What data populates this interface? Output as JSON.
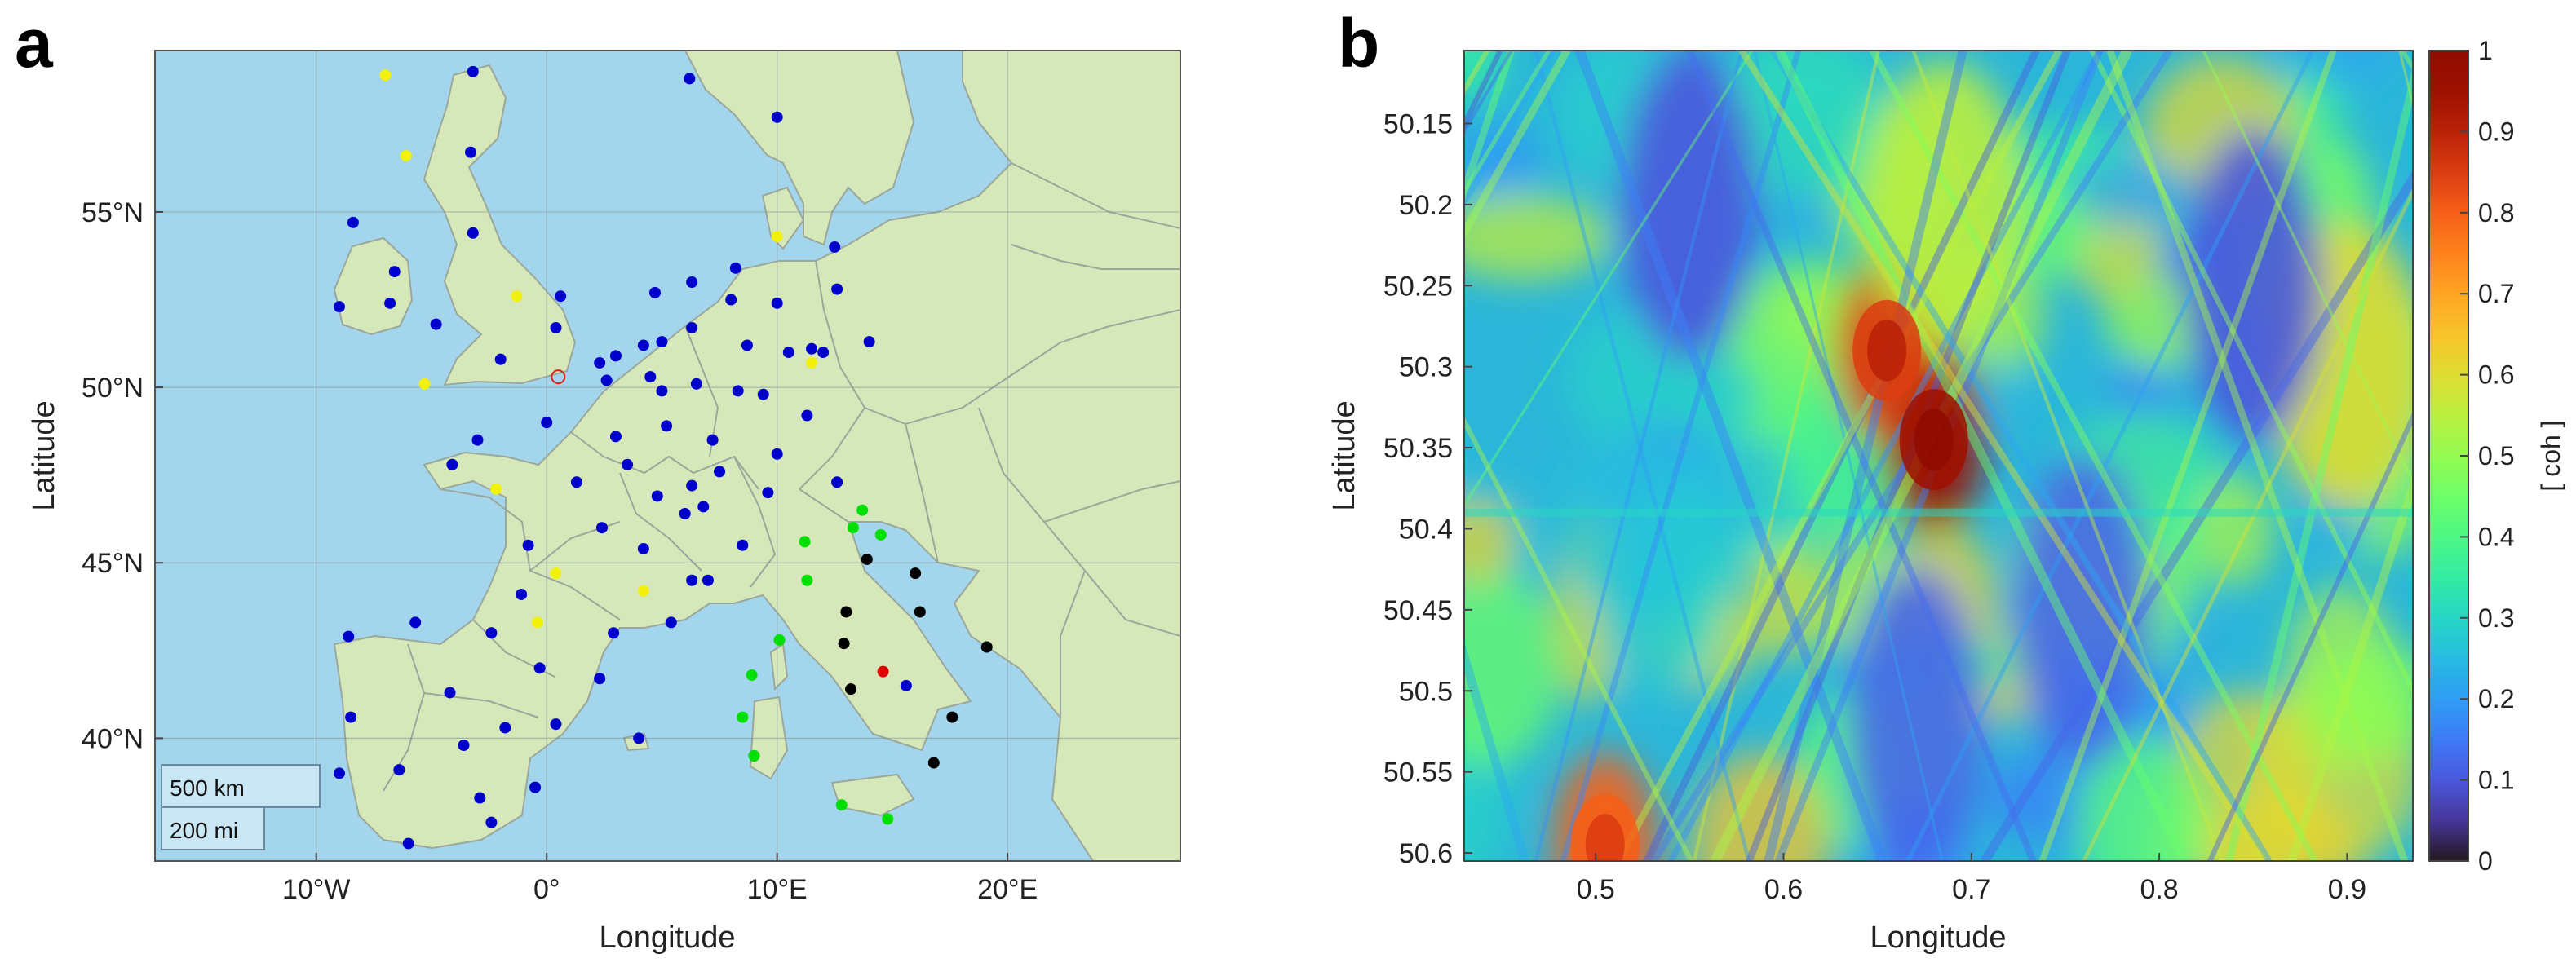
{
  "panels": {
    "a": {
      "letter": "a"
    },
    "b": {
      "letter": "b"
    }
  },
  "chart_data": [
    {
      "panel": "a",
      "type": "scatter",
      "xlabel": "Longitude",
      "ylabel": "Latitude",
      "xlim": [
        -17,
        27.5
      ],
      "ylim": [
        36.5,
        59.6
      ],
      "xticks": [
        {
          "value": -10,
          "label": "10°W"
        },
        {
          "value": 0,
          "label": "0°"
        },
        {
          "value": 10,
          "label": "10°E"
        },
        {
          "value": 20,
          "label": "20°E"
        }
      ],
      "yticks": [
        {
          "value": 40,
          "label": "40°N"
        },
        {
          "value": 45,
          "label": "45°N"
        },
        {
          "value": 50,
          "label": "50°N"
        },
        {
          "value": 55,
          "label": "55°N"
        }
      ],
      "grid": true,
      "background": {
        "ocean": "#a3d6ec",
        "land": "#d6e8b9",
        "borders": "#9aa79a"
      },
      "scale_bar": {
        "km_label": "500 km",
        "mi_label": "200 mi"
      },
      "series": [
        {
          "color": "#0000cc",
          "points": [
            [
              -3.2,
              59
            ],
            [
              6.2,
              58.8
            ],
            [
              10,
              57.7
            ],
            [
              -3.3,
              56.7
            ],
            [
              -8.4,
              54.7
            ],
            [
              -3.2,
              54.4
            ],
            [
              12.5,
              54
            ],
            [
              -6.6,
              53.3
            ],
            [
              -9,
              52.3
            ],
            [
              -6.8,
              52.4
            ],
            [
              -4.8,
              51.8
            ],
            [
              0.6,
              52.6
            ],
            [
              4.7,
              52.7
            ],
            [
              6.3,
              53
            ],
            [
              8.2,
              53.4
            ],
            [
              10,
              52.4
            ],
            [
              12.6,
              52.8
            ],
            [
              14,
              51.3
            ],
            [
              12,
              51
            ],
            [
              0.4,
              51.7
            ],
            [
              3,
              50.9
            ],
            [
              4.2,
              51.2
            ],
            [
              5,
              51.3
            ],
            [
              2.3,
              50.7
            ],
            [
              4.5,
              50.3
            ],
            [
              6.3,
              51.7
            ],
            [
              8,
              52.5
            ],
            [
              8.7,
              51.2
            ],
            [
              10.5,
              51
            ],
            [
              11.5,
              51.1
            ],
            [
              -2,
              50.8
            ],
            [
              2.6,
              50.2
            ],
            [
              5,
              49.9
            ],
            [
              6.5,
              50.1
            ],
            [
              8.3,
              49.9
            ],
            [
              9.4,
              49.8
            ],
            [
              11.3,
              49.2
            ],
            [
              0,
              49
            ],
            [
              3,
              48.6
            ],
            [
              5.2,
              48.9
            ],
            [
              7.2,
              48.5
            ],
            [
              -4.1,
              47.8
            ],
            [
              -3,
              48.5
            ],
            [
              1.3,
              47.3
            ],
            [
              3.5,
              47.8
            ],
            [
              6.3,
              47.2
            ],
            [
              7.5,
              47.6
            ],
            [
              10,
              48.1
            ],
            [
              12.6,
              47.3
            ],
            [
              4.8,
              46.9
            ],
            [
              6,
              46.4
            ],
            [
              6.8,
              46.6
            ],
            [
              9.6,
              47
            ],
            [
              2.4,
              46
            ],
            [
              -0.8,
              45.5
            ],
            [
              4.2,
              45.4
            ],
            [
              8.5,
              45.5
            ],
            [
              -1.1,
              44.1
            ],
            [
              6.3,
              44.5
            ],
            [
              7,
              44.5
            ],
            [
              -2.4,
              43
            ],
            [
              2.9,
              43
            ],
            [
              5.4,
              43.3
            ],
            [
              -8.6,
              42.9
            ],
            [
              -5.7,
              43.3
            ],
            [
              -0.3,
              42
            ],
            [
              2.3,
              41.7
            ],
            [
              -4.2,
              41.3
            ],
            [
              -1.8,
              40.3
            ],
            [
              0.4,
              40.4
            ],
            [
              -8.5,
              40.6
            ],
            [
              4,
              40
            ],
            [
              -3.6,
              39.8
            ],
            [
              -0.5,
              38.6
            ],
            [
              -6.4,
              39.1
            ],
            [
              9,
              39.5
            ],
            [
              -2.9,
              38.3
            ],
            [
              -9,
              39
            ],
            [
              -2.4,
              37.6
            ],
            [
              -6,
              37
            ],
            [
              15.6,
              41.5
            ]
          ]
        },
        {
          "color": "#f1f10c",
          "points": [
            [
              -7,
              58.9
            ],
            [
              -6.1,
              56.6
            ],
            [
              -1.3,
              52.6
            ],
            [
              -5.3,
              50.1
            ],
            [
              11.5,
              50.7
            ],
            [
              10,
              54.3
            ],
            [
              -2.2,
              47.1
            ],
            [
              0.4,
              44.7
            ],
            [
              -0.4,
              43.3
            ],
            [
              4.2,
              44.2
            ]
          ]
        },
        {
          "color": "#00e000",
          "points": [
            [
              13.7,
              46.5
            ],
            [
              13.3,
              46
            ],
            [
              14.5,
              45.8
            ],
            [
              11.2,
              45.6
            ],
            [
              11.3,
              44.5
            ],
            [
              10.1,
              42.8
            ],
            [
              8.9,
              41.8
            ],
            [
              8.5,
              40.6
            ],
            [
              9,
              39.5
            ],
            [
              12.8,
              38.1
            ],
            [
              14.8,
              37.7
            ]
          ]
        },
        {
          "color": "#000000",
          "points": [
            [
              13.9,
              45.1
            ],
            [
              16,
              44.7
            ],
            [
              13,
              43.6
            ],
            [
              16.2,
              43.6
            ],
            [
              12.9,
              42.7
            ],
            [
              19.1,
              42.6
            ],
            [
              13.2,
              41.4
            ],
            [
              17.6,
              40.6
            ],
            [
              16.8,
              39.3
            ]
          ]
        },
        {
          "color": "#e00000",
          "points": [
            [
              14.6,
              41.9
            ]
          ]
        }
      ],
      "highlighted_site": {
        "color": "#e02020",
        "marker": "open-circle",
        "lon": 0.5,
        "lat": 50.3
      }
    },
    {
      "panel": "b",
      "type": "heatmap",
      "xlabel": "Longitude",
      "ylabel": "Latitude",
      "xlim": [
        0.43,
        0.935
      ],
      "ylim": [
        50.105,
        50.605
      ],
      "y_reversed": true,
      "xticks": [
        0.5,
        0.6,
        0.7,
        0.8,
        0.9
      ],
      "xtick_labels": [
        "0.5",
        "0.6",
        "0.7",
        "0.8",
        "0.9"
      ],
      "yticks": [
        50.15,
        50.2,
        50.25,
        50.3,
        50.35,
        50.4,
        50.45,
        50.5,
        50.55,
        50.6
      ],
      "ytick_labels": [
        "50.15",
        "50.2",
        "50.25",
        "50.3",
        "50.35",
        "50.4",
        "50.45",
        "50.5",
        "50.55",
        "50.6"
      ],
      "colormap": "turbo",
      "colorbar": {
        "label": "[ coh ]",
        "ticks": [
          0,
          0.1,
          0.2,
          0.3,
          0.4,
          0.5,
          0.6,
          0.7,
          0.8,
          0.9,
          1
        ],
        "tick_labels": [
          "0",
          "0.1",
          "0.2",
          "0.3",
          "0.4",
          "0.5",
          "0.6",
          "0.7",
          "0.8",
          "0.9",
          "1"
        ],
        "range": [
          0,
          1
        ]
      },
      "features": [
        {
          "kind": "peak",
          "lon": 0.68,
          "lat": 50.345,
          "value": 0.95
        },
        {
          "kind": "peak",
          "lon": 0.655,
          "lat": 50.29,
          "value": 0.85
        },
        {
          "kind": "peak",
          "lon": 0.505,
          "lat": 50.595,
          "value": 0.8
        },
        {
          "kind": "band",
          "lon": 0.685,
          "lat": 50.2,
          "value": 0.55
        },
        {
          "kind": "band",
          "lon": 0.9,
          "lat": 50.3,
          "value": 0.6
        },
        {
          "kind": "trough",
          "lon": 0.55,
          "lat": 50.2,
          "value": 0.1
        },
        {
          "kind": "trough",
          "lon": 0.85,
          "lat": 50.25,
          "value": 0.1
        },
        {
          "kind": "trough",
          "lon": 0.76,
          "lat": 50.45,
          "value": 0.12
        },
        {
          "kind": "trough",
          "lon": 0.67,
          "lat": 50.52,
          "value": 0.12
        }
      ]
    }
  ]
}
